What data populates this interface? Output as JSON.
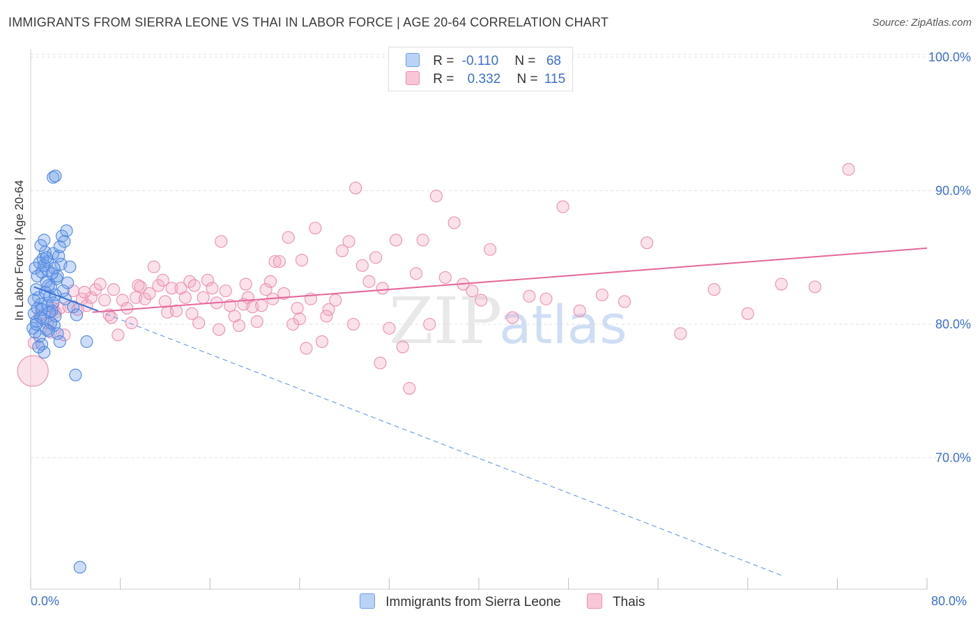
{
  "title": "IMMIGRANTS FROM SIERRA LEONE VS THAI IN LABOR FORCE | AGE 20-64 CORRELATION CHART",
  "source": "Source: ZipAtlas.com",
  "watermark": {
    "zip": "ZIP",
    "atlas": "atlas"
  },
  "legend": {
    "r_label": "R =",
    "n_label": "N =",
    "series": [
      {
        "name": "Immigrants from Sierra Leone",
        "r": "-0.110",
        "n": "68",
        "color": "#6f9fe8"
      },
      {
        "name": "Thais",
        "r": "0.332",
        "n": "115",
        "color": "#f08cb0"
      }
    ]
  },
  "chart_data": {
    "type": "scatter",
    "title": "IMMIGRANTS FROM SIERRA LEONE VS THAI IN LABOR FORCE | AGE 20-64 CORRELATION CHART",
    "xlabel": "",
    "ylabel": "In Labor Force | Age 20-64",
    "xlim": [
      0,
      80
    ],
    "ylim": [
      60,
      102
    ],
    "x_tick_labels": [
      "0.0%",
      "80.0%"
    ],
    "y_ticks": [
      70,
      80,
      90,
      100
    ],
    "y_tick_labels": [
      "70.0%",
      "80.0%",
      "90.0%",
      "100.0%"
    ],
    "grid": true,
    "legend_position": "top-center",
    "series": [
      {
        "name": "Immigrants from Sierra Leone",
        "color": "#5b8fe6",
        "trend": {
          "x": [
            0.3,
            6.0
          ],
          "y": [
            82.8,
            81.0
          ]
        },
        "trend_extension": {
          "x": [
            6.0,
            67.0
          ],
          "y": [
            81.0,
            61.2
          ]
        },
        "points": [
          [
            0.4,
            84.2
          ],
          [
            0.6,
            83.6
          ],
          [
            0.7,
            82.0
          ],
          [
            0.9,
            81.5
          ],
          [
            0.3,
            80.8
          ],
          [
            0.5,
            80.2
          ],
          [
            0.2,
            79.7
          ],
          [
            0.8,
            79.1
          ],
          [
            1.0,
            78.5
          ],
          [
            1.2,
            77.9
          ],
          [
            1.1,
            84.9
          ],
          [
            1.3,
            85.4
          ],
          [
            1.5,
            84.7
          ],
          [
            1.6,
            84.0
          ],
          [
            1.4,
            83.2
          ],
          [
            1.8,
            82.8
          ],
          [
            1.7,
            82.1
          ],
          [
            2.0,
            81.6
          ],
          [
            1.9,
            81.0
          ],
          [
            2.2,
            80.6
          ],
          [
            2.1,
            79.9
          ],
          [
            2.4,
            79.3
          ],
          [
            2.6,
            78.7
          ],
          [
            0.9,
            85.9
          ],
          [
            1.2,
            86.3
          ],
          [
            2.8,
            86.6
          ],
          [
            3.2,
            87.0
          ],
          [
            3.0,
            86.2
          ],
          [
            2.5,
            85.1
          ],
          [
            2.7,
            84.5
          ],
          [
            3.5,
            84.3
          ],
          [
            3.3,
            83.1
          ],
          [
            2.3,
            83.4
          ],
          [
            2.9,
            82.5
          ],
          [
            3.1,
            81.9
          ],
          [
            3.8,
            81.3
          ],
          [
            4.1,
            80.7
          ],
          [
            0.5,
            82.6
          ],
          [
            0.6,
            81.2
          ],
          [
            0.4,
            79.4
          ],
          [
            0.7,
            78.3
          ],
          [
            1.0,
            83.9
          ],
          [
            1.3,
            82.4
          ],
          [
            1.5,
            81.4
          ],
          [
            1.8,
            80.1
          ],
          [
            2.1,
            84.2
          ],
          [
            2.4,
            83.6
          ],
          [
            0.8,
            84.6
          ],
          [
            1.1,
            80.4
          ],
          [
            1.4,
            79.6
          ],
          [
            0.3,
            81.8
          ],
          [
            2.0,
            85.3
          ],
          [
            2.6,
            85.8
          ],
          [
            1.6,
            82.9
          ],
          [
            1.9,
            83.8
          ],
          [
            2.2,
            82.2
          ],
          [
            1.7,
            80.9
          ],
          [
            1.0,
            81.1
          ],
          [
            2.0,
            91.0
          ],
          [
            2.2,
            91.1
          ],
          [
            5.0,
            78.7
          ],
          [
            4.0,
            76.2
          ],
          [
            4.4,
            61.8
          ],
          [
            1.2,
            84.4
          ],
          [
            1.4,
            85.0
          ],
          [
            0.9,
            80.5
          ],
          [
            1.6,
            79.5
          ],
          [
            0.5,
            80.0
          ]
        ]
      },
      {
        "name": "Thais",
        "color": "#f08cb0",
        "trend": {
          "x": [
            5.5,
            80.0
          ],
          "y": [
            80.9,
            85.7
          ]
        },
        "points": [
          [
            0.2,
            76.5
          ],
          [
            0.3,
            78.6
          ],
          [
            0.8,
            80.6
          ],
          [
            1.5,
            80.1
          ],
          [
            1.8,
            79.4
          ],
          [
            2.2,
            80.9
          ],
          [
            2.6,
            81.2
          ],
          [
            3.0,
            79.2
          ],
          [
            3.4,
            81.3
          ],
          [
            3.8,
            82.5
          ],
          [
            4.2,
            81.1
          ],
          [
            4.6,
            81.9
          ],
          [
            5.0,
            81.4
          ],
          [
            5.4,
            82.0
          ],
          [
            5.8,
            82.6
          ],
          [
            6.2,
            83.0
          ],
          [
            6.6,
            81.8
          ],
          [
            7.0,
            80.7
          ],
          [
            7.4,
            82.6
          ],
          [
            7.8,
            79.2
          ],
          [
            8.2,
            81.8
          ],
          [
            8.6,
            81.2
          ],
          [
            9.0,
            80.1
          ],
          [
            9.4,
            82.0
          ],
          [
            9.8,
            82.8
          ],
          [
            10.2,
            81.9
          ],
          [
            10.6,
            82.3
          ],
          [
            11.0,
            84.3
          ],
          [
            11.4,
            82.9
          ],
          [
            11.8,
            83.3
          ],
          [
            12.2,
            80.9
          ],
          [
            12.6,
            82.7
          ],
          [
            13.0,
            81.0
          ],
          [
            13.4,
            82.7
          ],
          [
            13.8,
            82.0
          ],
          [
            14.2,
            83.2
          ],
          [
            14.6,
            82.9
          ],
          [
            15.0,
            80.1
          ],
          [
            15.4,
            82.0
          ],
          [
            15.8,
            83.3
          ],
          [
            16.2,
            82.7
          ],
          [
            16.6,
            81.6
          ],
          [
            17.0,
            86.2
          ],
          [
            17.4,
            82.5
          ],
          [
            17.8,
            81.4
          ],
          [
            18.2,
            80.6
          ],
          [
            18.6,
            79.9
          ],
          [
            19.0,
            81.5
          ],
          [
            19.4,
            82.0
          ],
          [
            19.8,
            81.3
          ],
          [
            20.2,
            80.2
          ],
          [
            20.6,
            81.4
          ],
          [
            21.0,
            82.6
          ],
          [
            21.4,
            83.2
          ],
          [
            21.8,
            84.7
          ],
          [
            22.2,
            84.7
          ],
          [
            22.6,
            82.3
          ],
          [
            23.0,
            86.5
          ],
          [
            23.4,
            80.0
          ],
          [
            23.8,
            81.2
          ],
          [
            24.2,
            84.8
          ],
          [
            24.6,
            78.2
          ],
          [
            25.0,
            81.9
          ],
          [
            25.4,
            87.2
          ],
          [
            26.0,
            78.7
          ],
          [
            26.6,
            81.1
          ],
          [
            27.2,
            81.8
          ],
          [
            27.8,
            85.5
          ],
          [
            28.4,
            86.2
          ],
          [
            29.0,
            90.2
          ],
          [
            29.6,
            84.4
          ],
          [
            30.2,
            83.2
          ],
          [
            30.8,
            85.0
          ],
          [
            31.4,
            82.7
          ],
          [
            32.0,
            79.7
          ],
          [
            32.6,
            86.3
          ],
          [
            33.2,
            78.3
          ],
          [
            33.8,
            75.2
          ],
          [
            34.4,
            83.8
          ],
          [
            35.0,
            86.3
          ],
          [
            35.6,
            80.0
          ],
          [
            36.2,
            89.6
          ],
          [
            37.0,
            83.5
          ],
          [
            37.8,
            87.6
          ],
          [
            38.6,
            83.0
          ],
          [
            39.4,
            82.5
          ],
          [
            40.2,
            81.8
          ],
          [
            41.0,
            85.6
          ],
          [
            43.0,
            80.5
          ],
          [
            44.5,
            82.1
          ],
          [
            46.0,
            81.9
          ],
          [
            47.5,
            88.8
          ],
          [
            49.0,
            81.0
          ],
          [
            51.0,
            82.2
          ],
          [
            53.0,
            81.7
          ],
          [
            55.0,
            86.1
          ],
          [
            58.0,
            79.3
          ],
          [
            61.0,
            82.6
          ],
          [
            64.0,
            80.8
          ],
          [
            67.0,
            83.0
          ],
          [
            70.0,
            82.8
          ],
          [
            73.0,
            91.6
          ],
          [
            2.0,
            81.2
          ],
          [
            4.8,
            82.4
          ],
          [
            7.2,
            80.5
          ],
          [
            9.6,
            82.9
          ],
          [
            12.0,
            81.7
          ],
          [
            14.4,
            80.8
          ],
          [
            16.8,
            79.6
          ],
          [
            19.2,
            83.0
          ],
          [
            21.6,
            81.9
          ],
          [
            24.0,
            80.4
          ],
          [
            26.4,
            80.6
          ],
          [
            28.8,
            80.0
          ],
          [
            31.2,
            77.1
          ]
        ]
      }
    ]
  }
}
